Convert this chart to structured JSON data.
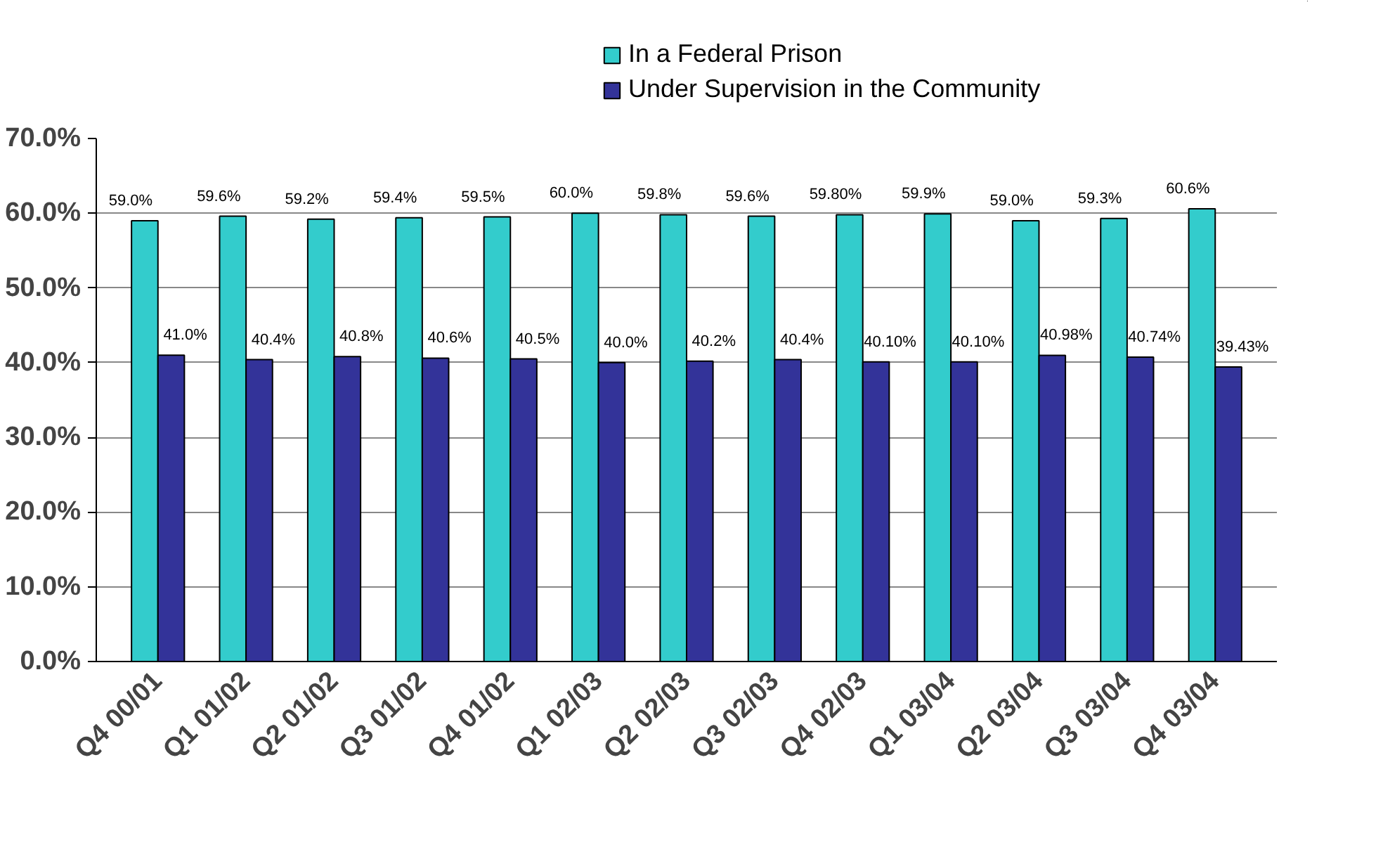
{
  "chart_data": {
    "type": "bar",
    "categories": [
      "Q4 00/01",
      "Q1 01/02",
      "Q2 01/02",
      "Q3 01/02",
      "Q4 01/02",
      "Q1 02/03",
      "Q2 02/03",
      "Q3 02/03",
      "Q4 02/03",
      "Q1 03/04",
      "Q2 03/04",
      "Q3 03/04",
      "Q4 03/04"
    ],
    "series": [
      {
        "name": "In a Federal Prison",
        "color": "#33cccc",
        "values": [
          59.0,
          59.6,
          59.2,
          59.4,
          59.5,
          60.0,
          59.8,
          59.6,
          59.8,
          59.9,
          59.0,
          59.3,
          60.6
        ],
        "value_labels": [
          "59.0%",
          "59.6%",
          "59.2%",
          "59.4%",
          "59.5%",
          "60.0%",
          "59.8%",
          "59.6%",
          "59.80%",
          "59.9%",
          "59.0%",
          "59.3%",
          "60.6%"
        ]
      },
      {
        "name": "Under Supervision in the Community",
        "color": "#333399",
        "values": [
          41.0,
          40.4,
          40.8,
          40.6,
          40.5,
          40.0,
          40.2,
          40.4,
          40.1,
          40.1,
          40.98,
          40.74,
          39.43
        ],
        "value_labels": [
          "41.0%",
          "40.4%",
          "40.8%",
          "40.6%",
          "40.5%",
          "40.0%",
          "40.2%",
          "40.4%",
          "40.10%",
          "40.10%",
          "40.98%",
          "40.74%",
          "39.43%"
        ]
      }
    ],
    "ylim": [
      0,
      70
    ],
    "yticks": [
      {
        "value": 0,
        "label": "0.0%"
      },
      {
        "value": 10,
        "label": "10.0%"
      },
      {
        "value": 20,
        "label": "20.0%"
      },
      {
        "value": 30,
        "label": "30.0%"
      },
      {
        "value": 40,
        "label": "40.0%"
      },
      {
        "value": 50,
        "label": "50.0%"
      },
      {
        "value": 60,
        "label": "60.0%"
      },
      {
        "value": 70,
        "label": "70.0%"
      }
    ],
    "grid": "y",
    "legend": "top"
  }
}
